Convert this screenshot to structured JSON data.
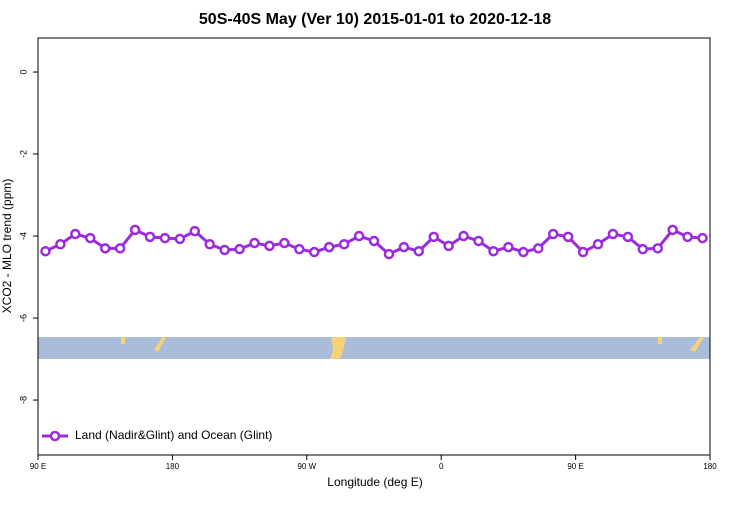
{
  "chart_data": {
    "type": "line",
    "title": "50S-40S May (Ver 10)   2015-01-01 to 2020-12-18",
    "x_label": "Longitude (deg E)",
    "y_label": "XCO2 - MLO trend (ppm)",
    "x": [
      95,
      105,
      115,
      125,
      135,
      145,
      155,
      165,
      175,
      185,
      195,
      205,
      215,
      225,
      235,
      245,
      255,
      265,
      275,
      285,
      295,
      305,
      315,
      325,
      335,
      345,
      355,
      365,
      375,
      385,
      395,
      405,
      415,
      425,
      435,
      445,
      455,
      465,
      475,
      485,
      495,
      505,
      515,
      525,
      535
    ],
    "series": [
      {
        "name": "Land (Nadir&Glint) and Ocean (Glint)",
        "color": "#9a2be0",
        "values": [
          -4.37,
          -4.2,
          -3.95,
          -4.05,
          -4.3,
          -4.3,
          -3.85,
          -4.02,
          -4.05,
          -4.07,
          -3.88,
          -4.2,
          -4.34,
          -4.32,
          -4.17,
          -4.24,
          -4.17,
          -4.32,
          -4.39,
          -4.27,
          -4.2,
          -4.0,
          -4.12,
          -4.44,
          -4.27,
          -4.37,
          -4.02,
          -4.24,
          -4.0,
          -4.12,
          -4.37,
          -4.27,
          -4.39,
          -4.3,
          -3.95,
          -4.02,
          -4.39,
          -4.2,
          -3.95,
          -4.02,
          -4.32,
          -4.3,
          -3.85,
          -4.02,
          -4.05
        ]
      }
    ],
    "xlim": [
      90,
      540
    ],
    "xticks": [
      {
        "value": 90,
        "label": "90 E"
      },
      180,
      {
        "value": 270,
        "label": "90 W"
      },
      {
        "value": 360,
        "label": "0"
      },
      {
        "value": 450,
        "label": "90 E"
      },
      {
        "value": 540,
        "label": "180"
      }
    ],
    "ylim": [
      -9.34,
      0.83
    ],
    "yticks": [
      0,
      -2,
      -4,
      -6,
      -8
    ],
    "legend": "bottom-left"
  }
}
